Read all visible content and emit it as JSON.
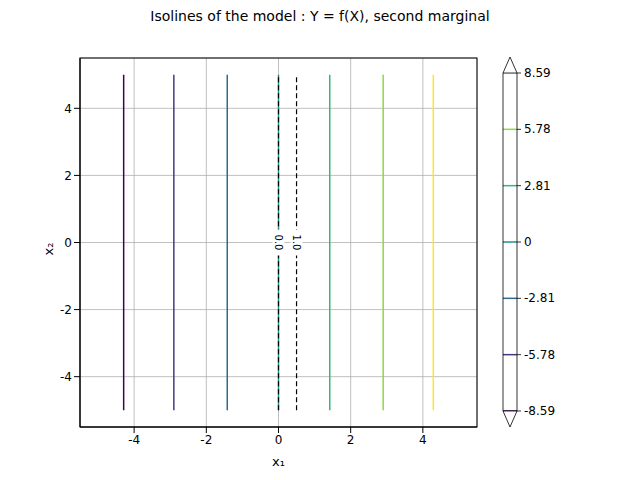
{
  "chart_data": {
    "type": "contour",
    "title": "Isolines of the model : Y = f(X), second marginal",
    "x_label": "x₁",
    "y_label": "x₂",
    "xlim": [
      -5.5,
      5.5
    ],
    "ylim": [
      -5.5,
      5.5
    ],
    "xticks": [
      -4,
      -2,
      0,
      2,
      4
    ],
    "yticks": [
      -4,
      -2,
      0,
      2,
      4
    ],
    "grid": true,
    "isolines": [
      {
        "level": -8.59,
        "color": "#440154",
        "x": [
          -4.29,
          -4.29
        ],
        "y": [
          -5,
          5
        ]
      },
      {
        "level": -5.78,
        "color": "#443983",
        "x": [
          -2.9,
          -2.9
        ],
        "y": [
          -5,
          5
        ]
      },
      {
        "level": -2.81,
        "color": "#31688e",
        "x": [
          -1.42,
          -1.42
        ],
        "y": [
          -5,
          5
        ]
      },
      {
        "level": 0,
        "color": "#21918c",
        "x": [
          0,
          0
        ],
        "y": [
          -5,
          5
        ]
      },
      {
        "level": 2.81,
        "color": "#35b779",
        "x": [
          1.42,
          1.42
        ],
        "y": [
          -5,
          5
        ]
      },
      {
        "level": 5.78,
        "color": "#90d743",
        "x": [
          2.9,
          2.9
        ],
        "y": [
          -5,
          5
        ]
      },
      {
        "level": 8.59,
        "color": "#fde725",
        "x": [
          4.29,
          4.29
        ],
        "y": [
          -5,
          5
        ]
      }
    ],
    "dashed_isolines": [
      {
        "level": 0,
        "label": "0.0",
        "color": "#000000",
        "line_style": "dashed",
        "x": [
          0,
          0,
          0
        ],
        "y": [
          -5,
          0,
          5
        ]
      },
      {
        "level": 1,
        "label": "1.0",
        "color": "#000000",
        "line_style": "dashed",
        "x": [
          0.5,
          0.5,
          0.5
        ],
        "y": [
          -5,
          0,
          5
        ]
      }
    ]
  }
}
